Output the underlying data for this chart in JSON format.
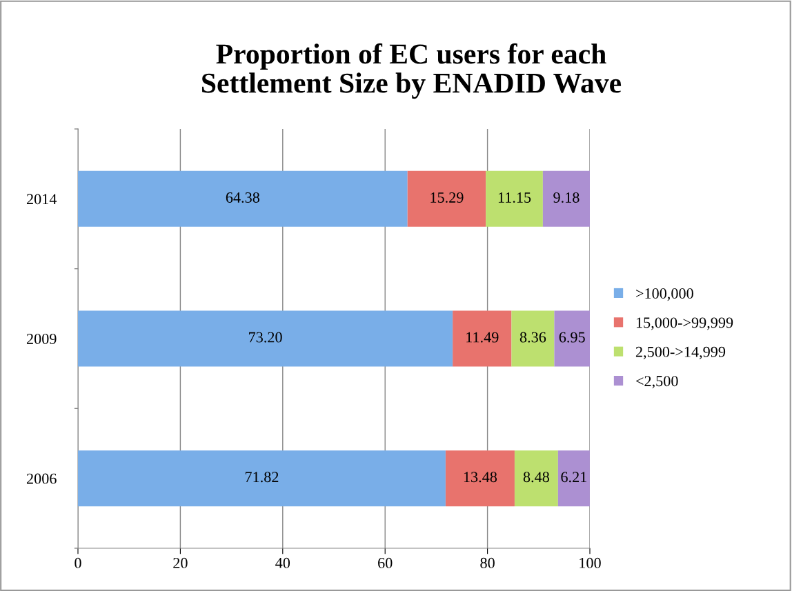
{
  "chart_data": {
    "type": "bar",
    "orientation": "horizontal",
    "stacked": true,
    "title": "Proportion of EC users for each\nSettlement Size by ENADID Wave",
    "categories": [
      "2014",
      "2009",
      "2006"
    ],
    "series": [
      {
        "name": ">100,000",
        "color": "#79aee8",
        "values": [
          64.38,
          73.2,
          71.82
        ],
        "value_labels": [
          "64.38",
          "73.20",
          "71.82"
        ]
      },
      {
        "name": "15,000->99,999",
        "color": "#e8736d",
        "values": [
          15.29,
          11.49,
          13.48
        ],
        "value_labels": [
          "15.29",
          "11.49",
          "13.48"
        ]
      },
      {
        "name": "2,500->14,999",
        "color": "#bde06f",
        "values": [
          11.15,
          8.36,
          8.48
        ],
        "value_labels": [
          "11.15",
          "8.36",
          "8.48"
        ]
      },
      {
        "name": "<2,500",
        "color": "#ac90d2",
        "values": [
          9.18,
          6.95,
          6.21
        ],
        "value_labels": [
          "9.18",
          "6.95",
          "6.21"
        ]
      }
    ],
    "xlim": [
      0,
      100
    ],
    "xticks": [
      0,
      20,
      40,
      60,
      80,
      100
    ],
    "grid": "x",
    "legend": "right"
  }
}
